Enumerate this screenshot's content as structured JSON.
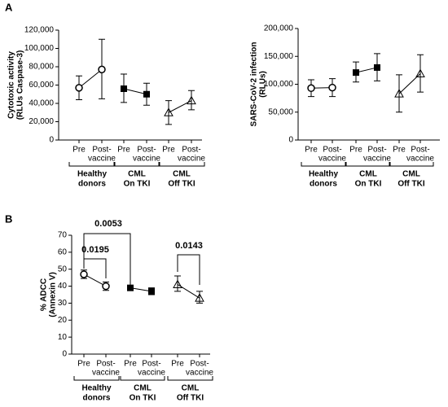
{
  "panels": [
    "A",
    "B"
  ],
  "chart_data": [
    {
      "type": "dot-line",
      "ylabel": [
        "Cytotoxic activity",
        "(RLUs Caspase-3)"
      ],
      "ylim": [
        0,
        120000
      ],
      "yticks": [
        0,
        {
          "value": 20000,
          "label": "20,000"
        },
        {
          "value": 40000,
          "label": "40,000"
        },
        {
          "value": 60000,
          "label": "60,000"
        },
        {
          "value": 80000,
          "label": "80,000"
        },
        {
          "value": 100000,
          "label": "100,000"
        },
        {
          "value": 120000,
          "label": "120,000"
        }
      ],
      "categories": [
        [
          "Pre"
        ],
        [
          "Post-",
          "vaccine"
        ],
        [
          "Pre"
        ],
        [
          "Post-",
          "vaccine"
        ],
        [
          "Pre"
        ],
        [
          "Post-",
          "vaccine"
        ]
      ],
      "groups": [
        {
          "name": [
            "Healthy",
            "donors"
          ],
          "marker": "circle-open",
          "values": [
            57000,
            77000
          ],
          "err_low": [
            44000,
            45000
          ],
          "err_high": [
            70000,
            110000
          ]
        },
        {
          "name": [
            "CML",
            "On TKI"
          ],
          "marker": "square",
          "values": [
            56000,
            50000
          ],
          "err_low": [
            41000,
            38000
          ],
          "err_high": [
            72000,
            62000
          ]
        },
        {
          "name": [
            "CML",
            "Off TKI"
          ],
          "marker": "triangle",
          "values": [
            30000,
            43000
          ],
          "err_low": [
            17000,
            33000
          ],
          "err_high": [
            43000,
            54000
          ]
        }
      ]
    },
    {
      "type": "dot-line",
      "ylabel": [
        "SARS-CoV-2 infection",
        "(RLUs)"
      ],
      "ylim": [
        0,
        200000
      ],
      "yticks": [
        0,
        {
          "value": 50000,
          "label": "50,000"
        },
        {
          "value": 100000,
          "label": "100,000"
        },
        {
          "value": 150000,
          "label": "150,000"
        },
        {
          "value": 200000,
          "label": "200,000"
        }
      ],
      "categories": [
        [
          "Pre"
        ],
        [
          "Post-",
          "vaccine"
        ],
        [
          "Pre"
        ],
        [
          "Post-",
          "vaccine"
        ],
        [
          "Pre"
        ],
        [
          "Post-",
          "vaccine"
        ]
      ],
      "groups": [
        {
          "name": [
            "Healthy",
            "donors"
          ],
          "marker": "circle-open",
          "values": [
            93000,
            94000
          ],
          "err_low": [
            78000,
            78000
          ],
          "err_high": [
            108000,
            110000
          ]
        },
        {
          "name": [
            "CML",
            "On TKI"
          ],
          "marker": "square",
          "values": [
            121000,
            130000
          ],
          "err_low": [
            104000,
            106000
          ],
          "err_high": [
            140000,
            155000
          ]
        },
        {
          "name": [
            "CML",
            "Off TKI"
          ],
          "marker": "triangle",
          "values": [
            83000,
            119000
          ],
          "err_low": [
            50000,
            86000
          ],
          "err_high": [
            117000,
            153000
          ]
        }
      ]
    },
    {
      "type": "dot-line",
      "ylabel": [
        "% ADCC",
        "(Annexin V)"
      ],
      "ylim": [
        0,
        70
      ],
      "yticks": [
        0,
        10,
        20,
        30,
        40,
        50,
        60,
        70
      ],
      "categories": [
        [
          "Pre"
        ],
        [
          "Post-",
          "vaccine"
        ],
        [
          "Pre"
        ],
        [
          "Post-",
          "vaccine"
        ],
        [
          "Pre"
        ],
        [
          "Post-",
          "vaccine"
        ]
      ],
      "groups": [
        {
          "name": [
            "Healthy",
            "donors"
          ],
          "marker": "circle-open",
          "values": [
            47,
            40
          ],
          "err_low": [
            44.5,
            37.5
          ],
          "err_high": [
            49.5,
            42.5
          ]
        },
        {
          "name": [
            "CML",
            "On TKI"
          ],
          "marker": "square",
          "values": [
            39,
            37
          ],
          "err_low": [
            38,
            35
          ],
          "err_high": [
            40,
            39
          ]
        },
        {
          "name": [
            "CML",
            "Off TKI"
          ],
          "marker": "triangle",
          "values": [
            41,
            33
          ],
          "err_low": [
            37,
            30
          ],
          "err_high": [
            46,
            37
          ]
        }
      ],
      "annotations": [
        "0.0195",
        "0.0053",
        "0.0143"
      ]
    }
  ]
}
